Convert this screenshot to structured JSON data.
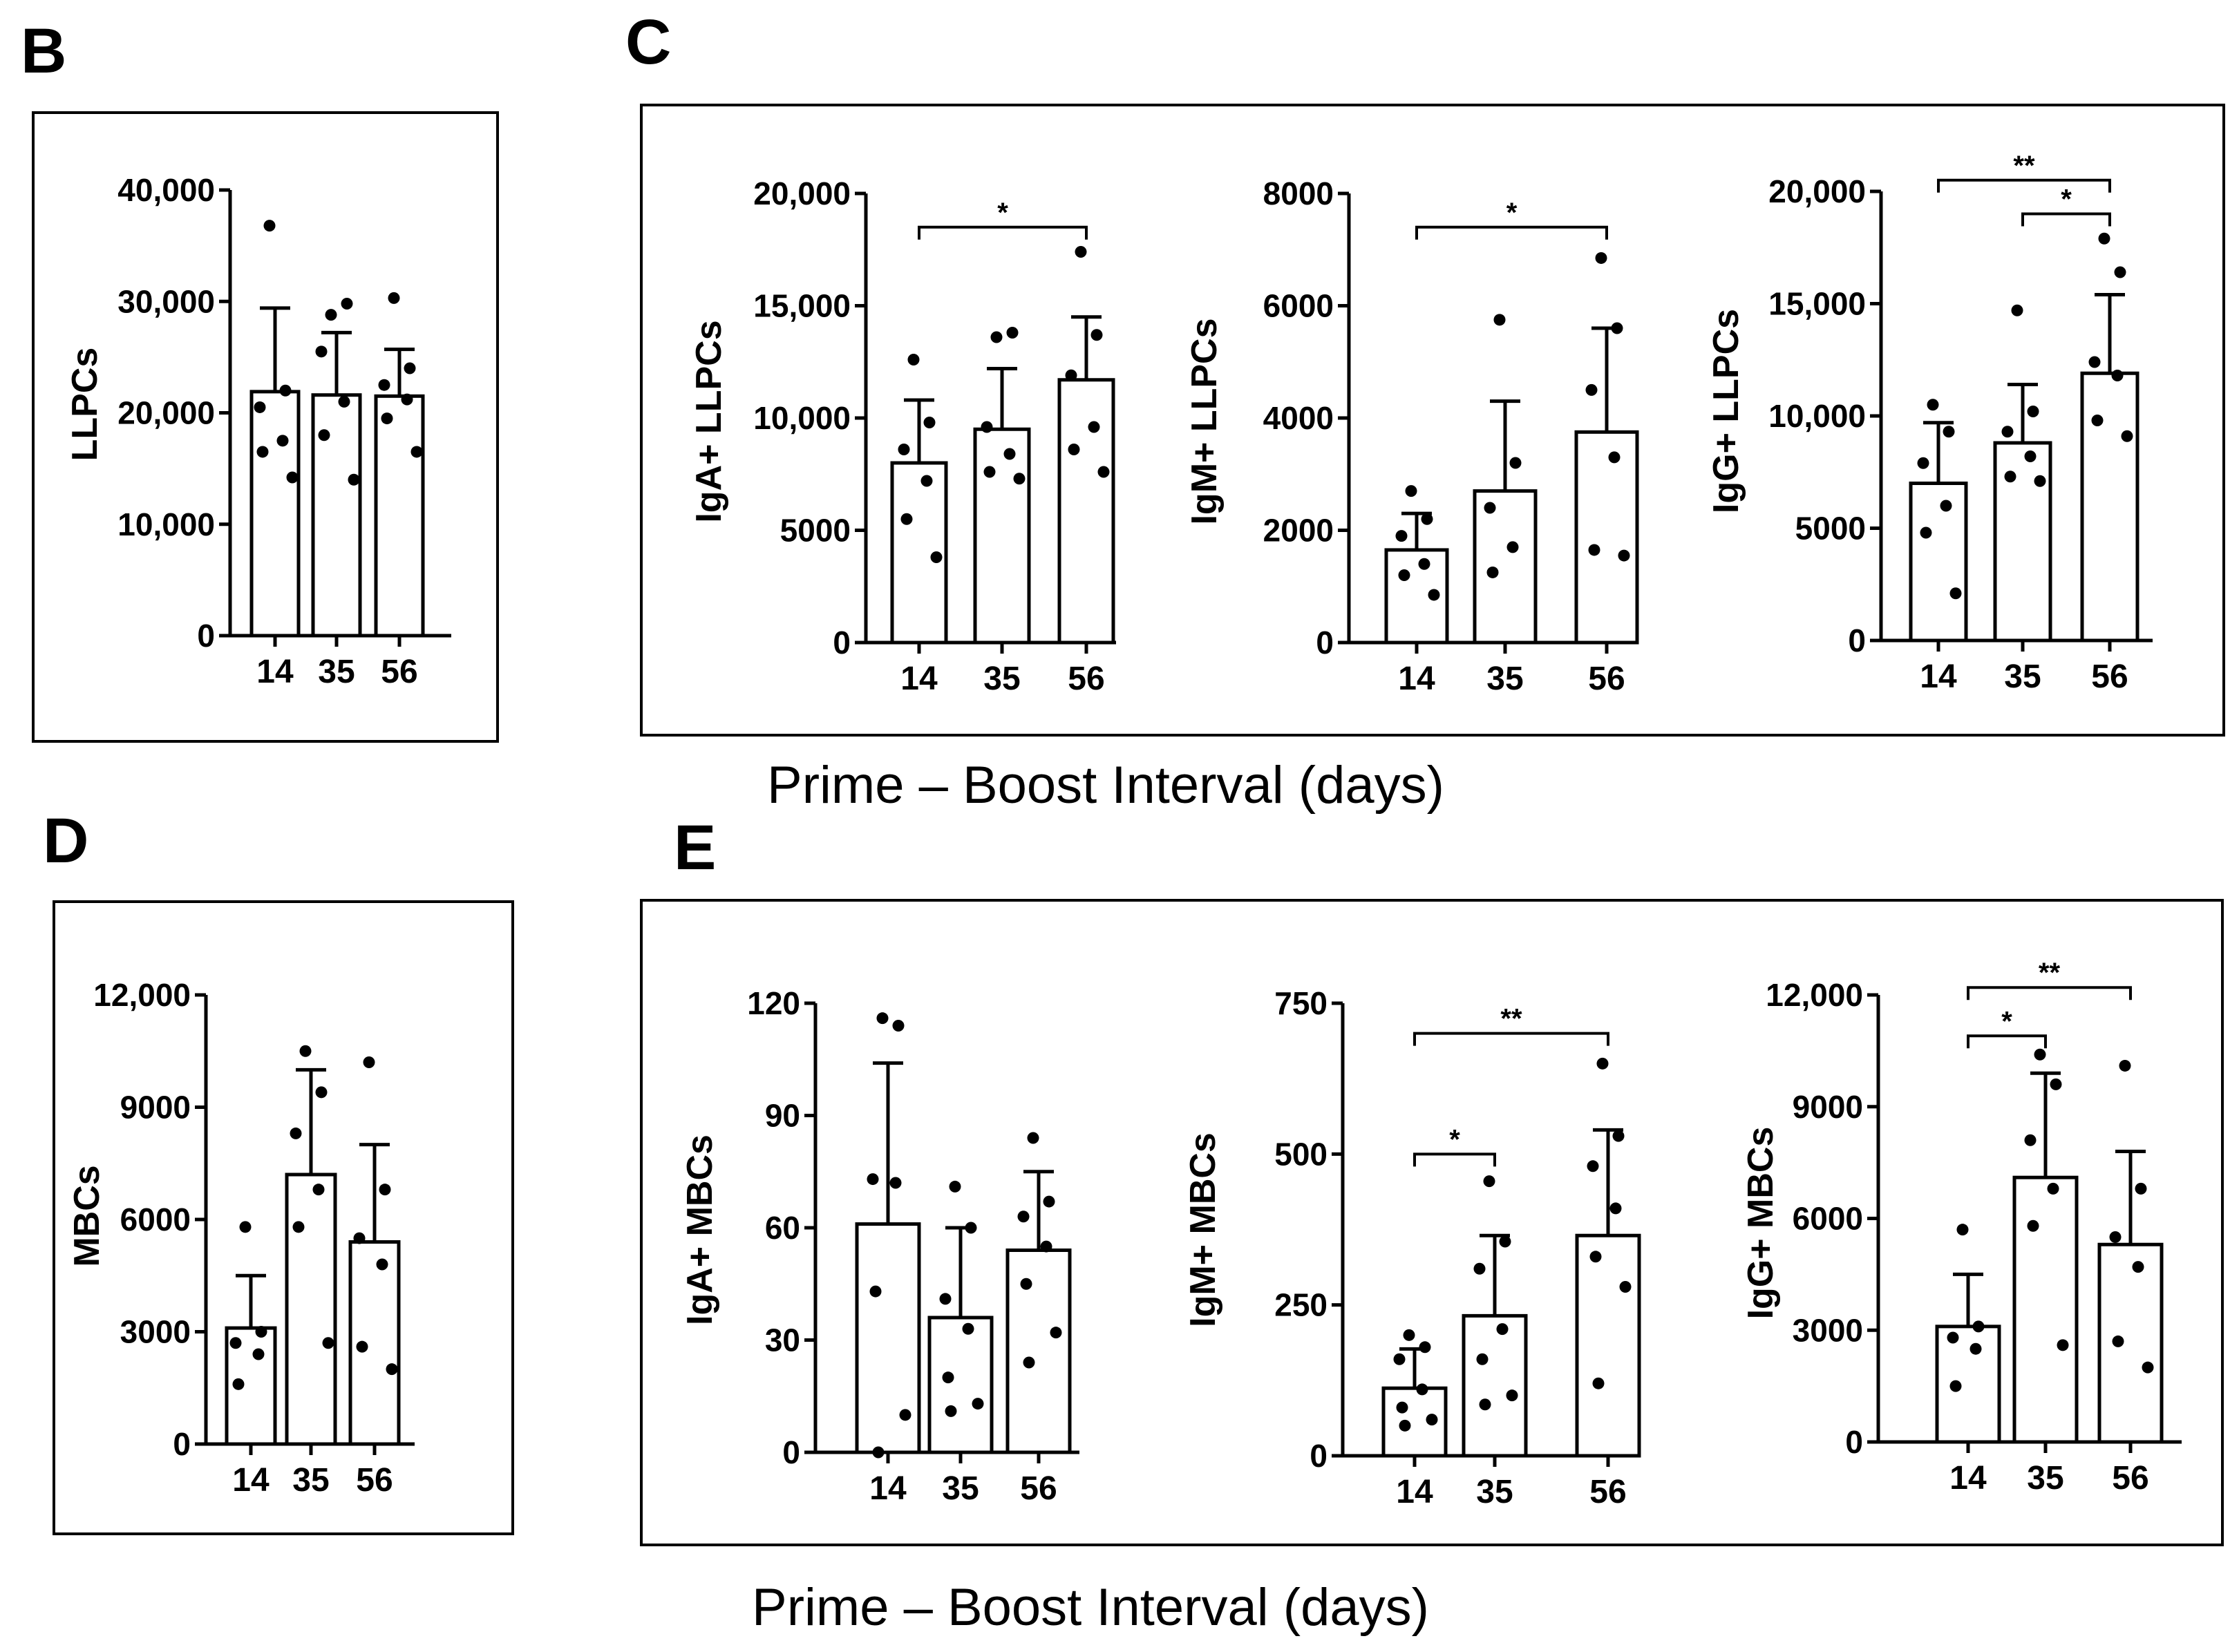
{
  "figure": {
    "panel_letters": {
      "B": "B",
      "C": "C",
      "D": "D",
      "E": "E"
    },
    "xlabel_top": "Prime – Boost Interval (days)",
    "xlabel_bottom": "Prime – Boost Interval (days)",
    "colors": {
      "bar_fill": "#ffffff",
      "stroke": "#000000",
      "dot": "#000000"
    }
  },
  "chart_data": [
    {
      "id": "B",
      "type": "bar",
      "ylabel": "LLPCs",
      "categories": [
        "14",
        "35",
        "56"
      ],
      "ylim": [
        0,
        40000
      ],
      "yticks": [
        0,
        10000,
        20000,
        30000,
        40000
      ],
      "ytick_labels": [
        "0",
        "10,000",
        "20,000",
        "30,000",
        "40,000"
      ],
      "values": [
        21900,
        21600,
        21500
      ],
      "sd": [
        7500,
        5600,
        4200
      ],
      "points": [
        [
          36800,
          22000,
          20500,
          17500,
          16500,
          14200
        ],
        [
          28800,
          29800,
          25500,
          21000,
          18000,
          14000
        ],
        [
          30300,
          24000,
          22500,
          21200,
          19500,
          16500
        ]
      ],
      "significance": []
    },
    {
      "id": "C1",
      "type": "bar",
      "ylabel": "IgA+ LLPCs",
      "categories": [
        "14",
        "35",
        "56"
      ],
      "ylim": [
        0,
        20000
      ],
      "yticks": [
        0,
        5000,
        10000,
        15000,
        20000
      ],
      "ytick_labels": [
        "0",
        "5000",
        "10,000",
        "15,000",
        "20,000"
      ],
      "values": [
        8000,
        9500,
        11700
      ],
      "sd": [
        2800,
        2700,
        2800
      ],
      "points": [
        [
          12600,
          9800,
          8600,
          7200,
          5500,
          3800
        ],
        [
          13600,
          13800,
          9600,
          8400,
          7600,
          7300
        ],
        [
          17400,
          13700,
          11900,
          9600,
          8600,
          7600
        ]
      ],
      "significance": [
        {
          "from": 0,
          "to": 2,
          "label": "*",
          "y": 18500
        }
      ]
    },
    {
      "id": "C2",
      "type": "bar",
      "ylabel": "IgM+ LLPCs",
      "categories": [
        "14",
        "35",
        "56"
      ],
      "ylim": [
        0,
        8000
      ],
      "yticks": [
        0,
        2000,
        4000,
        6000,
        8000
      ],
      "ytick_labels": [
        "0",
        "2000",
        "4000",
        "6000",
        "8000"
      ],
      "values": [
        1650,
        2700,
        3750
      ],
      "sd": [
        650,
        1600,
        1850
      ],
      "points": [
        [
          2700,
          2200,
          1900,
          1400,
          1200,
          850
        ],
        [
          5750,
          3200,
          2400,
          1700,
          1250
        ],
        [
          6850,
          5600,
          4500,
          3300,
          1650,
          1550
        ]
      ],
      "significance": [
        {
          "from": 0,
          "to": 2,
          "label": "*",
          "y": 7400
        }
      ]
    },
    {
      "id": "C3",
      "type": "bar",
      "ylabel": "IgG+ LLPCs",
      "categories": [
        "14",
        "35",
        "56"
      ],
      "ylim": [
        0,
        20000
      ],
      "yticks": [
        0,
        5000,
        10000,
        15000,
        20000
      ],
      "ytick_labels": [
        "0",
        "5000",
        "10,000",
        "15,000",
        "20,000"
      ],
      "values": [
        7000,
        8800,
        11900
      ],
      "sd": [
        2700,
        2600,
        3500
      ],
      "points": [
        [
          10500,
          9300,
          7900,
          6000,
          4800,
          2100
        ],
        [
          14700,
          10200,
          9300,
          8200,
          7300,
          7100
        ],
        [
          17900,
          16400,
          12400,
          11800,
          9800,
          9100
        ]
      ],
      "significance": [
        {
          "from": 0,
          "to": 2,
          "label": "**",
          "y": 20500
        },
        {
          "from": 1,
          "to": 2,
          "label": "*",
          "y": 19000
        }
      ]
    },
    {
      "id": "D",
      "type": "bar",
      "ylabel": "MBCs",
      "categories": [
        "14",
        "35",
        "56"
      ],
      "ylim": [
        0,
        12000
      ],
      "yticks": [
        0,
        3000,
        6000,
        9000,
        12000
      ],
      "ytick_labels": [
        "0",
        "3000",
        "6000",
        "9000",
        "12,000"
      ],
      "values": [
        3100,
        7200,
        5400
      ],
      "sd": [
        1400,
        2800,
        2600
      ],
      "points": [
        [
          5800,
          3000,
          2700,
          2400,
          1600
        ],
        [
          10500,
          9400,
          8300,
          6800,
          5800,
          2700
        ],
        [
          10200,
          6800,
          5500,
          4800,
          2600,
          2000
        ]
      ],
      "significance": []
    },
    {
      "id": "E1",
      "type": "bar",
      "ylabel": "IgA+ MBCs",
      "categories": [
        "14",
        "35",
        "56"
      ],
      "ylim": [
        0,
        120
      ],
      "yticks": [
        0,
        30,
        60,
        90,
        120
      ],
      "ytick_labels": [
        "0",
        "30",
        "60",
        "90",
        "120"
      ],
      "values": [
        61,
        36,
        54
      ],
      "sd": [
        43,
        24,
        21
      ],
      "points": [
        [
          116,
          114,
          73,
          72,
          43,
          10,
          0
        ],
        [
          71,
          60,
          41,
          33,
          20,
          13,
          11
        ],
        [
          84,
          67,
          63,
          55,
          45,
          32,
          24
        ]
      ],
      "significance": []
    },
    {
      "id": "E2",
      "type": "bar",
      "ylabel": "IgM+ MBCs",
      "categories": [
        "14",
        "35",
        "56"
      ],
      "ylim": [
        0,
        750
      ],
      "yticks": [
        0,
        250,
        500,
        750
      ],
      "ytick_labels": [
        "0",
        "250",
        "500",
        "750"
      ],
      "values": [
        112,
        232,
        365
      ],
      "sd": [
        65,
        133,
        175
      ],
      "points": [
        [
          200,
          180,
          160,
          110,
          80,
          60,
          50
        ],
        [
          455,
          355,
          310,
          210,
          160,
          100,
          85
        ],
        [
          650,
          530,
          480,
          410,
          330,
          280,
          120
        ]
      ],
      "significance": [
        {
          "from": 0,
          "to": 2,
          "label": "**",
          "y": 700
        },
        {
          "from": 0,
          "to": 1,
          "label": "*",
          "y": 500
        }
      ]
    },
    {
      "id": "E3",
      "type": "bar",
      "ylabel": "IgG+ MBCs",
      "categories": [
        "14",
        "35",
        "56"
      ],
      "ylim": [
        0,
        12000
      ],
      "yticks": [
        0,
        3000,
        6000,
        9000,
        12000
      ],
      "ytick_labels": [
        "0",
        "3000",
        "6000",
        "9000",
        "12,000"
      ],
      "values": [
        3100,
        7100,
        5300
      ],
      "sd": [
        1400,
        2800,
        2500
      ],
      "points": [
        [
          5700,
          3100,
          2800,
          2500,
          1500
        ],
        [
          10400,
          9600,
          8100,
          6800,
          5800,
          2600
        ],
        [
          10100,
          6800,
          5500,
          4700,
          2700,
          2000
        ]
      ],
      "significance": [
        {
          "from": 0,
          "to": 2,
          "label": "**",
          "y": 12200
        },
        {
          "from": 0,
          "to": 1,
          "label": "*",
          "y": 10900
        }
      ]
    }
  ]
}
